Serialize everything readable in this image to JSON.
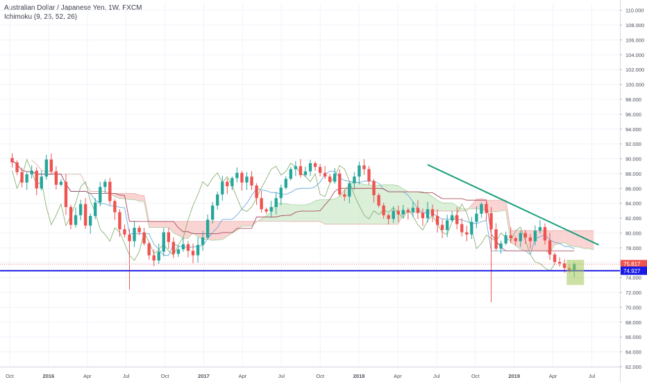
{
  "legend": {
    "title": "Australian Dollar / Japanese Yen, 1W, FXCM",
    "indicator": "Ichimoku (9, 26, 52, 26)"
  },
  "colors": {
    "up": "#26a69a",
    "down": "#ef5350",
    "grid": "#f0f3fa",
    "kumo_bear": "#f7c6c4",
    "kumo_bull": "#cfe9cc",
    "tenkan": "#5aa0d8",
    "kijun": "#a2364a",
    "chikou": "#7ea865",
    "trendline": "#179d7a",
    "support": "#1a1ae6",
    "current_price": "#ef5350"
  },
  "chart_data": {
    "type": "candlestick",
    "title": "Australian Dollar / Japanese Yen, 1W, FXCM",
    "ylim": [
      62,
      111
    ],
    "y_ticks": [
      "110.000",
      "108.000",
      "106.000",
      "104.000",
      "102.000",
      "100.000",
      "98.000",
      "96.000",
      "94.000",
      "92.000",
      "90.000",
      "88.000",
      "86.000",
      "84.000",
      "82.000",
      "80.000",
      "78.000",
      "76.000",
      "74.000",
      "72.000",
      "70.000",
      "68.000",
      "66.000",
      "64.000",
      "62.000"
    ],
    "x_ticks": [
      {
        "label": "Oct",
        "t": 0.0,
        "year": false
      },
      {
        "label": "2016",
        "t": 0.13,
        "year": true
      },
      {
        "label": "Apr",
        "t": 0.26,
        "year": false
      },
      {
        "label": "Jul",
        "t": 0.39,
        "year": false
      },
      {
        "label": "Oct",
        "t": 0.52,
        "year": false
      },
      {
        "label": "2017",
        "t": 0.65,
        "year": true
      },
      {
        "label": "Apr",
        "t": 0.78,
        "year": false
      },
      {
        "label": "Jul",
        "t": 0.91,
        "year": false
      },
      {
        "label": "Oct",
        "t": 1.04,
        "year": false
      },
      {
        "label": "2018",
        "t": 1.17,
        "year": true
      },
      {
        "label": "Apr",
        "t": 1.3,
        "year": false
      },
      {
        "label": "Jul",
        "t": 1.43,
        "year": false
      },
      {
        "label": "Oct",
        "t": 1.56,
        "year": false
      },
      {
        "label": "2019",
        "t": 1.69,
        "year": true
      },
      {
        "label": "Apr",
        "t": 1.82,
        "year": false
      },
      {
        "label": "Jul",
        "t": 1.95,
        "year": false
      }
    ],
    "close_path": [
      89.5,
      88.2,
      86.8,
      87.9,
      88.4,
      86.0,
      87.6,
      89.9,
      88.3,
      86.5,
      86.9,
      83.5,
      81.1,
      82.4,
      83.9,
      81.0,
      82.3,
      84.1,
      86.2,
      86.9,
      84.3,
      82.8,
      80.5,
      79.8,
      78.9,
      80.7,
      80.1,
      78.6,
      77.0,
      76.3,
      77.5,
      80.1,
      78.8,
      77.2,
      77.8,
      78.5,
      77.6,
      77.0,
      78.4,
      79.4,
      81.8,
      83.7,
      85.2,
      86.9,
      86.3,
      87.4,
      88.1,
      86.8,
      87.6,
      86.4,
      84.7,
      83.2,
      82.9,
      83.5,
      84.7,
      86.1,
      87.3,
      88.6,
      89.0,
      87.8,
      88.3,
      89.4,
      88.9,
      88.1,
      87.6,
      86.9,
      88.0,
      85.2,
      84.9,
      86.7,
      87.6,
      89.1,
      88.6,
      87.0,
      85.1,
      83.7,
      82.4,
      81.9,
      83.0,
      82.5,
      83.1,
      82.8,
      83.4,
      82.7,
      82.0,
      83.2,
      82.3,
      81.1,
      80.4,
      81.7,
      82.4,
      81.2,
      80.1,
      79.8,
      81.5,
      82.6,
      83.9,
      82.7,
      80.5,
      77.9,
      78.6,
      79.7,
      79.3,
      78.9,
      80.0,
      79.4,
      78.9,
      80.3,
      80.8,
      79.0,
      77.1,
      76.1,
      75.9,
      75.3,
      74.9,
      75.8
    ],
    "support_price": "74.927",
    "current_price": "75.817",
    "support_value": 74.927,
    "current_value": 75.817,
    "trendline": {
      "from_date": "2018-01",
      "from_price": 89.2,
      "to_date": "2019-09",
      "to_price": 78.4
    }
  }
}
